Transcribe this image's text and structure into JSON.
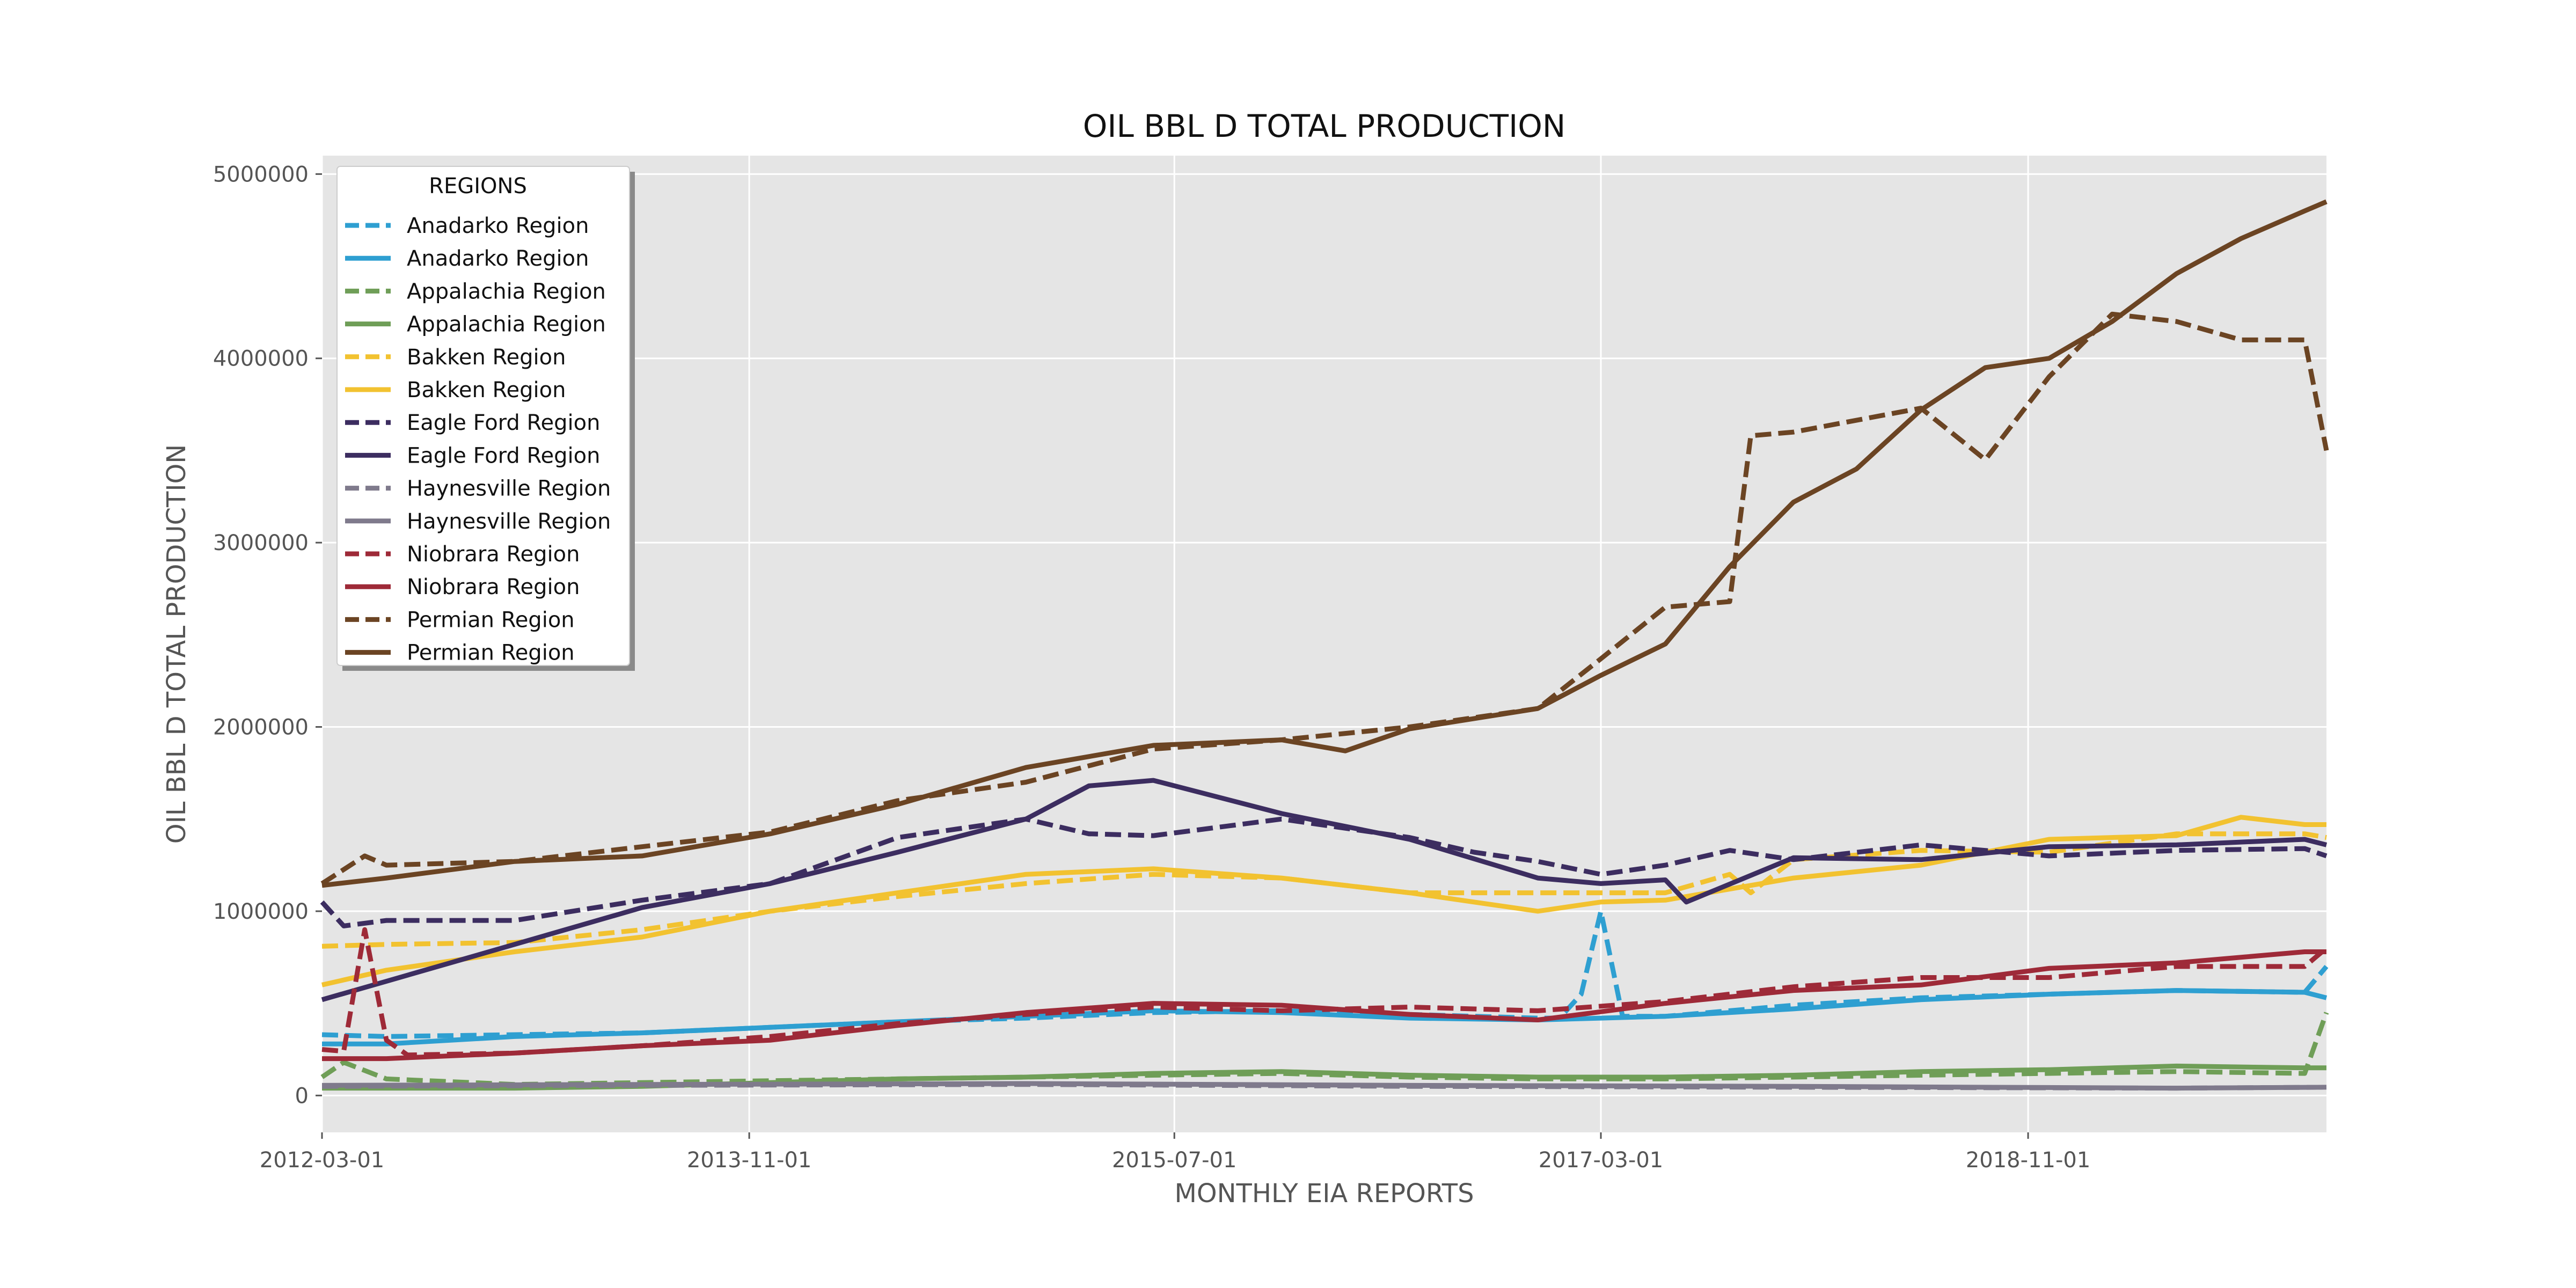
{
  "chart_data": {
    "type": "line",
    "title": "OIL BBL D TOTAL PRODUCTION",
    "xlabel": "MONTHLY EIA REPORTS",
    "ylabel": "OIL BBL D TOTAL PRODUCTION",
    "x_ticks": [
      "2012-03-01",
      "2013-11-01",
      "2015-07-01",
      "2017-03-01",
      "2018-11-01"
    ],
    "y_ticks": [
      0,
      1000000,
      2000000,
      3000000,
      4000000,
      5000000
    ],
    "y_tick_labels": [
      "0",
      "1000000",
      "2000000",
      "3000000",
      "4000000",
      "5000000"
    ],
    "xlim": [
      "2012-03-01",
      "2020-01-01"
    ],
    "ylim": [
      -200000,
      5100000
    ],
    "grid": true,
    "legend": {
      "title": "REGIONS",
      "position": "top-left"
    },
    "background": "#e5e5e5",
    "series": [
      {
        "name": "Anadarko Region",
        "style": "dashed",
        "color": "#2e9fd1",
        "x": [
          "2012-03-01",
          "2012-06-01",
          "2012-12-01",
          "2013-06-01",
          "2013-12-01",
          "2014-06-01",
          "2014-12-01",
          "2015-06-01",
          "2015-12-01",
          "2016-06-01",
          "2016-12-01",
          "2017-01-01",
          "2017-02-01",
          "2017-03-01",
          "2017-04-01",
          "2017-06-01",
          "2017-12-01",
          "2018-06-01",
          "2018-12-01",
          "2019-06-01",
          "2019-12-01",
          "2020-01-01"
        ],
        "y": [
          330000,
          320000,
          330000,
          340000,
          370000,
          400000,
          420000,
          450000,
          460000,
          440000,
          420000,
          420000,
          550000,
          1000000,
          430000,
          430000,
          490000,
          530000,
          550000,
          570000,
          560000,
          700000
        ]
      },
      {
        "name": "Anadarko Region",
        "style": "solid",
        "color": "#2e9fd1",
        "x": [
          "2012-03-01",
          "2012-06-01",
          "2012-12-01",
          "2013-06-01",
          "2013-12-01",
          "2014-06-01",
          "2014-12-01",
          "2015-06-01",
          "2015-12-01",
          "2016-06-01",
          "2016-12-01",
          "2017-06-01",
          "2017-12-01",
          "2018-06-01",
          "2018-12-01",
          "2019-06-01",
          "2019-12-01",
          "2020-01-01"
        ],
        "y": [
          280000,
          280000,
          320000,
          340000,
          370000,
          400000,
          430000,
          460000,
          450000,
          420000,
          410000,
          430000,
          470000,
          520000,
          550000,
          570000,
          560000,
          530000
        ]
      },
      {
        "name": "Appalachia Region",
        "style": "dashed",
        "color": "#6f9e57",
        "x": [
          "2012-03-01",
          "2012-04-01",
          "2012-06-01",
          "2012-12-01",
          "2013-06-01",
          "2013-12-01",
          "2014-06-01",
          "2014-12-01",
          "2015-06-01",
          "2015-12-01",
          "2016-06-01",
          "2016-12-01",
          "2017-06-01",
          "2017-12-01",
          "2018-06-01",
          "2018-12-01",
          "2019-06-01",
          "2019-12-01",
          "2020-01-01"
        ],
        "y": [
          100000,
          180000,
          90000,
          60000,
          70000,
          80000,
          90000,
          100000,
          110000,
          120000,
          100000,
          90000,
          90000,
          100000,
          110000,
          120000,
          130000,
          120000,
          450000
        ]
      },
      {
        "name": "Appalachia Region",
        "style": "solid",
        "color": "#6f9e57",
        "x": [
          "2012-03-01",
          "2012-12-01",
          "2013-06-01",
          "2013-12-01",
          "2014-06-01",
          "2014-12-01",
          "2015-06-01",
          "2015-12-01",
          "2016-06-01",
          "2016-12-01",
          "2017-06-01",
          "2017-12-01",
          "2018-06-01",
          "2018-12-01",
          "2019-06-01",
          "2019-12-01",
          "2020-01-01"
        ],
        "y": [
          40000,
          40000,
          50000,
          70000,
          90000,
          100000,
          120000,
          130000,
          110000,
          100000,
          100000,
          110000,
          130000,
          140000,
          160000,
          150000,
          150000
        ]
      },
      {
        "name": "Bakken Region",
        "style": "dashed",
        "color": "#f2c230",
        "x": [
          "2012-03-01",
          "2012-06-01",
          "2012-12-01",
          "2013-06-01",
          "2013-12-01",
          "2014-06-01",
          "2014-12-01",
          "2015-06-01",
          "2015-12-01",
          "2016-06-01",
          "2016-12-01",
          "2017-06-01",
          "2017-09-01",
          "2017-10-01",
          "2017-12-01",
          "2018-06-01",
          "2018-12-01",
          "2019-06-01",
          "2019-12-01",
          "2020-01-01"
        ],
        "y": [
          810000,
          820000,
          830000,
          900000,
          1000000,
          1080000,
          1150000,
          1200000,
          1180000,
          1100000,
          1100000,
          1100000,
          1200000,
          1100000,
          1280000,
          1330000,
          1320000,
          1420000,
          1420000,
          1400000
        ]
      },
      {
        "name": "Bakken Region",
        "style": "solid",
        "color": "#f2c230",
        "x": [
          "2012-03-01",
          "2012-06-01",
          "2012-12-01",
          "2013-06-01",
          "2013-12-01",
          "2014-06-01",
          "2014-12-01",
          "2015-06-01",
          "2015-12-01",
          "2016-06-01",
          "2016-12-01",
          "2017-03-01",
          "2017-06-01",
          "2017-12-01",
          "2018-06-01",
          "2018-12-01",
          "2019-06-01",
          "2019-09-01",
          "2019-12-01",
          "2020-01-01"
        ],
        "y": [
          600000,
          680000,
          780000,
          860000,
          1000000,
          1100000,
          1200000,
          1230000,
          1180000,
          1100000,
          1000000,
          1050000,
          1060000,
          1180000,
          1250000,
          1390000,
          1410000,
          1510000,
          1470000,
          1470000
        ]
      },
      {
        "name": "Eagle Ford Region",
        "style": "dashed",
        "color": "#3c2d60",
        "x": [
          "2012-03-01",
          "2012-04-01",
          "2012-06-01",
          "2012-12-01",
          "2013-06-01",
          "2013-12-01",
          "2014-06-01",
          "2014-12-01",
          "2015-03-01",
          "2015-06-01",
          "2015-12-01",
          "2016-06-01",
          "2016-09-01",
          "2016-12-01",
          "2017-03-01",
          "2017-06-01",
          "2017-09-01",
          "2017-12-01",
          "2018-06-01",
          "2018-12-01",
          "2019-06-01",
          "2019-12-01",
          "2020-01-01"
        ],
        "y": [
          1050000,
          920000,
          950000,
          950000,
          1060000,
          1150000,
          1400000,
          1500000,
          1420000,
          1410000,
          1500000,
          1400000,
          1320000,
          1270000,
          1200000,
          1250000,
          1330000,
          1280000,
          1360000,
          1300000,
          1330000,
          1340000,
          1300000
        ]
      },
      {
        "name": "Eagle Ford Region",
        "style": "solid",
        "color": "#3c2d60",
        "x": [
          "2012-03-01",
          "2012-06-01",
          "2012-12-01",
          "2013-06-01",
          "2013-12-01",
          "2014-06-01",
          "2014-12-01",
          "2015-03-01",
          "2015-06-01",
          "2015-12-01",
          "2016-06-01",
          "2016-12-01",
          "2017-03-01",
          "2017-06-01",
          "2017-07-01",
          "2017-12-01",
          "2018-06-01",
          "2018-12-01",
          "2019-06-01",
          "2019-12-01",
          "2020-01-01"
        ],
        "y": [
          520000,
          620000,
          820000,
          1020000,
          1150000,
          1320000,
          1500000,
          1680000,
          1710000,
          1530000,
          1390000,
          1180000,
          1150000,
          1170000,
          1050000,
          1290000,
          1280000,
          1350000,
          1360000,
          1390000,
          1360000
        ]
      },
      {
        "name": "Haynesville Region",
        "style": "dashed",
        "color": "#7f7a8c",
        "x": [
          "2012-03-01",
          "2013-06-01",
          "2014-12-01",
          "2016-06-01",
          "2017-12-01",
          "2019-06-01",
          "2020-01-01"
        ],
        "y": [
          50000,
          55000,
          60000,
          50000,
          45000,
          40000,
          45000
        ]
      },
      {
        "name": "Haynesville Region",
        "style": "solid",
        "color": "#7f7a8c",
        "x": [
          "2012-03-01",
          "2013-06-01",
          "2014-12-01",
          "2016-06-01",
          "2017-12-01",
          "2019-06-01",
          "2020-01-01"
        ],
        "y": [
          55000,
          60000,
          65000,
          55000,
          50000,
          40000,
          45000
        ]
      },
      {
        "name": "Niobrara Region",
        "style": "dashed",
        "color": "#9e2a38",
        "x": [
          "2012-03-01",
          "2012-04-01",
          "2012-05-01",
          "2012-06-01",
          "2012-07-01",
          "2012-12-01",
          "2013-06-01",
          "2013-12-01",
          "2014-06-01",
          "2014-12-01",
          "2015-06-01",
          "2015-12-01",
          "2016-06-01",
          "2016-12-01",
          "2017-06-01",
          "2017-12-01",
          "2018-06-01",
          "2018-12-01",
          "2019-06-01",
          "2019-12-01",
          "2020-01-01"
        ],
        "y": [
          250000,
          240000,
          900000,
          300000,
          220000,
          230000,
          270000,
          320000,
          390000,
          440000,
          480000,
          460000,
          480000,
          460000,
          510000,
          590000,
          640000,
          640000,
          700000,
          700000,
          800000
        ]
      },
      {
        "name": "Niobrara Region",
        "style": "solid",
        "color": "#9e2a38",
        "x": [
          "2012-03-01",
          "2012-06-01",
          "2012-12-01",
          "2013-06-01",
          "2013-12-01",
          "2014-06-01",
          "2014-12-01",
          "2015-06-01",
          "2015-12-01",
          "2016-06-01",
          "2016-12-01",
          "2017-06-01",
          "2017-12-01",
          "2018-06-01",
          "2018-12-01",
          "2019-06-01",
          "2019-12-01",
          "2020-01-01"
        ],
        "y": [
          200000,
          200000,
          230000,
          270000,
          300000,
          380000,
          450000,
          500000,
          490000,
          440000,
          410000,
          500000,
          570000,
          600000,
          690000,
          720000,
          780000,
          780000
        ]
      },
      {
        "name": "Permian Region",
        "style": "dashed",
        "color": "#6b4423",
        "x": [
          "2012-03-01",
          "2012-05-01",
          "2012-06-01",
          "2012-12-01",
          "2013-06-01",
          "2013-12-01",
          "2014-06-01",
          "2014-12-01",
          "2015-06-01",
          "2015-12-01",
          "2016-06-01",
          "2016-12-01",
          "2017-03-01",
          "2017-06-01",
          "2017-09-01",
          "2017-10-01",
          "2017-12-01",
          "2018-06-01",
          "2018-09-01",
          "2018-12-01",
          "2019-03-01",
          "2019-06-01",
          "2019-09-01",
          "2019-12-01",
          "2020-01-01"
        ],
        "y": [
          1150000,
          1300000,
          1250000,
          1270000,
          1350000,
          1430000,
          1600000,
          1700000,
          1880000,
          1930000,
          2000000,
          2100000,
          2370000,
          2650000,
          2680000,
          3580000,
          3600000,
          3730000,
          3450000,
          3900000,
          4240000,
          4200000,
          4100000,
          4100000,
          3500000
        ]
      },
      {
        "name": "Permian Region",
        "style": "solid",
        "color": "#6b4423",
        "x": [
          "2012-03-01",
          "2012-06-01",
          "2012-12-01",
          "2013-06-01",
          "2013-12-01",
          "2014-06-01",
          "2014-12-01",
          "2015-06-01",
          "2015-12-01",
          "2016-03-01",
          "2016-06-01",
          "2016-12-01",
          "2017-03-01",
          "2017-06-01",
          "2017-09-01",
          "2017-12-01",
          "2018-03-01",
          "2018-06-01",
          "2018-09-01",
          "2018-12-01",
          "2019-03-01",
          "2019-06-01",
          "2019-09-01",
          "2019-12-01",
          "2020-01-01"
        ],
        "y": [
          1140000,
          1180000,
          1270000,
          1300000,
          1420000,
          1580000,
          1780000,
          1900000,
          1930000,
          1870000,
          1990000,
          2100000,
          2280000,
          2450000,
          2870000,
          3220000,
          3400000,
          3720000,
          3950000,
          4000000,
          4200000,
          4460000,
          4650000,
          4800000,
          4850000
        ]
      }
    ]
  }
}
